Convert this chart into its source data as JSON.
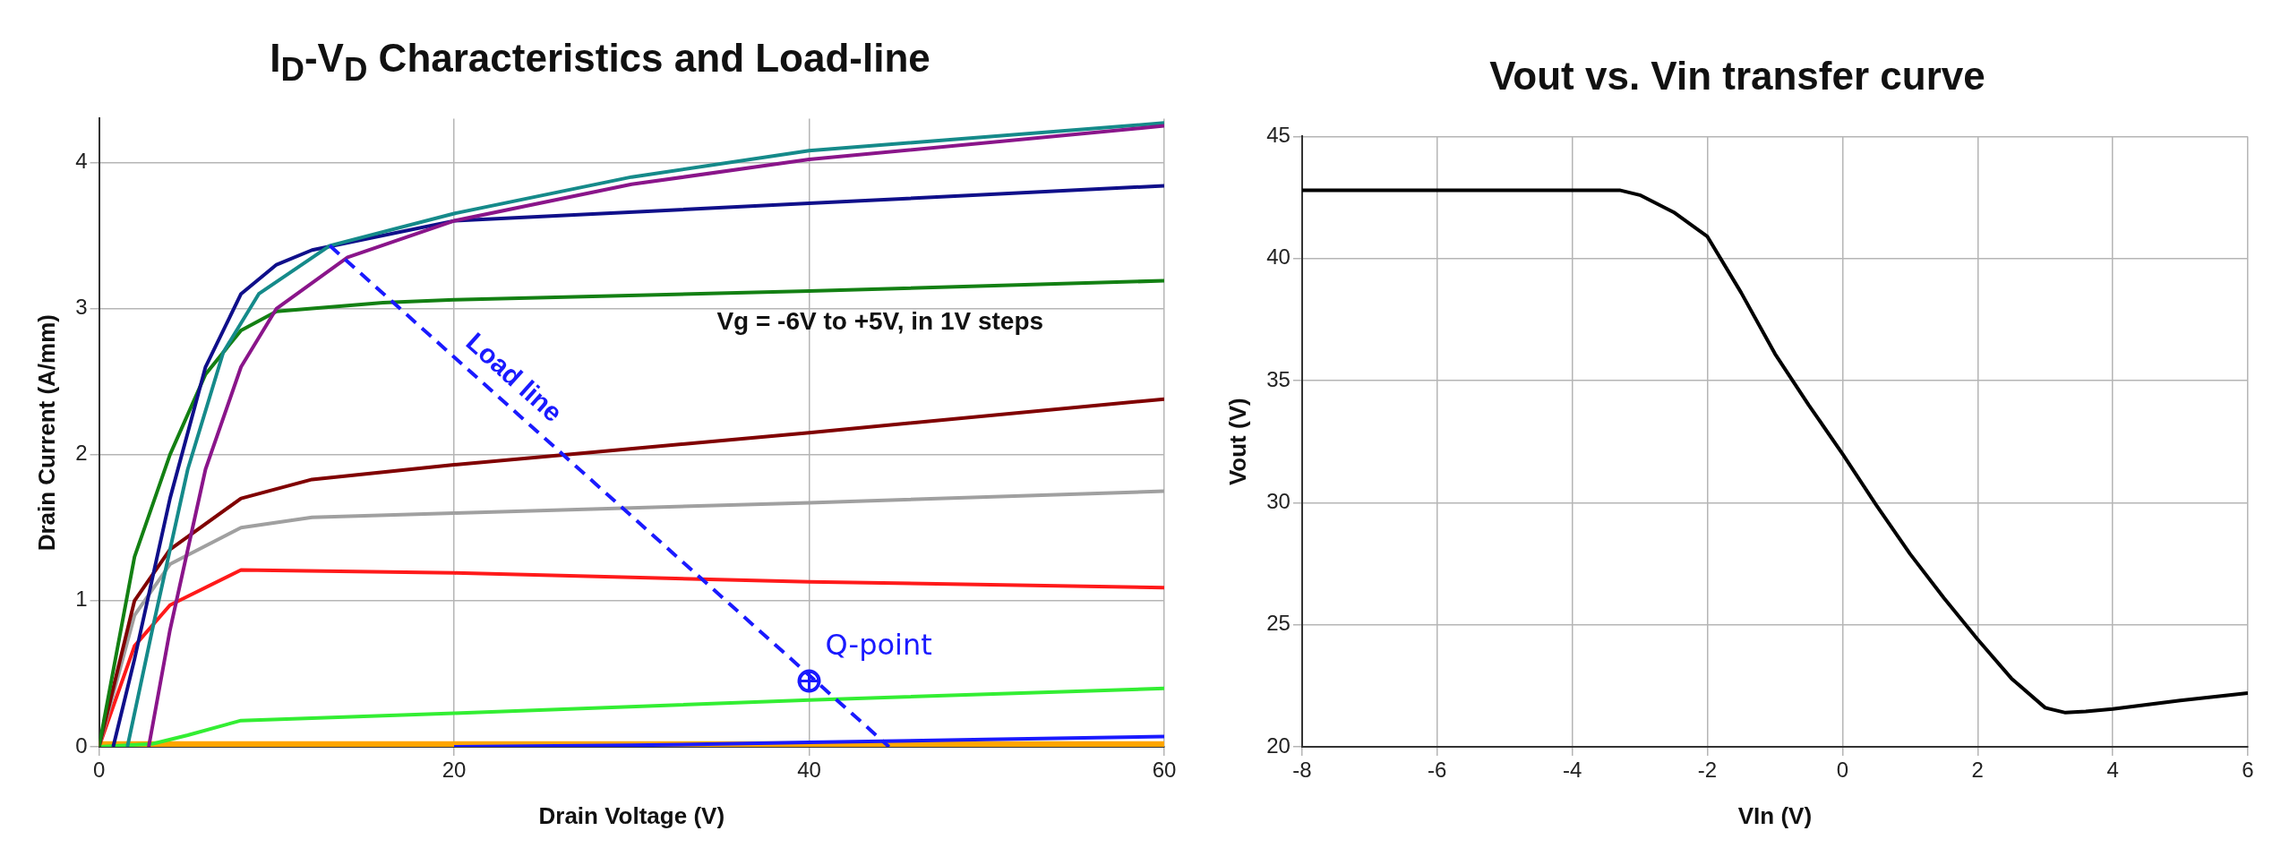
{
  "chart_data": [
    {
      "type": "line",
      "title": "I$_{D}$-V$_{D}$ Characteristics and Load-line",
      "xlabel": "Drain Voltage (V)",
      "ylabel": "Drain Current (A/mm)",
      "xlim": [
        0,
        60
      ],
      "ylim": [
        0,
        4.3
      ],
      "xticks": [
        0,
        20,
        40,
        60
      ],
      "yticks": [
        0,
        1,
        2,
        3,
        4
      ],
      "grid": true,
      "legend": false,
      "marker": "none",
      "annotations": [
        "Vg = -6V to +5V, in 1V steps"
      ],
      "series": [
        {
          "color": "#ffa500",
          "x": [
            0,
            20,
            40,
            60
          ],
          "values": [
            0.01,
            0.01,
            0.01,
            0.01
          ]
        },
        {
          "color": "#1a1aff",
          "x": [
            20,
            30,
            40,
            50,
            60
          ],
          "values": [
            0,
            0.01,
            0.03,
            0.05,
            0.07
          ]
        },
        {
          "color": "#33ee33",
          "x": [
            0,
            3,
            5,
            8,
            20,
            40,
            60
          ],
          "values": [
            0,
            0.02,
            0.08,
            0.18,
            0.23,
            0.32,
            0.4
          ]
        },
        {
          "color": "#ff1a1a",
          "x": [
            0,
            2,
            4,
            8,
            20,
            40,
            60
          ],
          "values": [
            0,
            0.69,
            0.97,
            1.21,
            1.19,
            1.13,
            1.09
          ]
        },
        {
          "color": "#a0a0a0",
          "x": [
            0,
            2,
            4,
            8,
            12,
            20,
            40,
            60
          ],
          "values": [
            0,
            0.9,
            1.25,
            1.5,
            1.57,
            1.6,
            1.67,
            1.75
          ]
        },
        {
          "color": "#800000",
          "x": [
            0,
            2,
            4,
            8,
            12,
            20,
            40,
            60
          ],
          "values": [
            0,
            1.0,
            1.35,
            1.7,
            1.83,
            1.93,
            2.15,
            2.38
          ]
        },
        {
          "color": "#138013",
          "x": [
            0,
            2,
            4,
            6,
            8,
            10,
            16,
            20,
            40,
            60
          ],
          "values": [
            0,
            1.3,
            2.0,
            2.55,
            2.85,
            2.98,
            3.04,
            3.06,
            3.12,
            3.19
          ]
        },
        {
          "color": "#0f0f8a",
          "x": [
            0.8,
            2,
            4,
            6,
            8,
            10,
            12,
            20,
            40,
            60
          ],
          "values": [
            0,
            0.6,
            1.7,
            2.6,
            3.1,
            3.3,
            3.4,
            3.6,
            3.72,
            3.84
          ]
        },
        {
          "color": "#158a8a",
          "x": [
            1.6,
            3,
            5,
            7,
            9,
            13,
            20,
            30,
            40,
            60
          ],
          "values": [
            0,
            0.8,
            1.9,
            2.7,
            3.1,
            3.43,
            3.65,
            3.9,
            4.08,
            4.27
          ]
        },
        {
          "color": "#8a158a",
          "x": [
            2.8,
            4,
            6,
            8,
            10,
            14,
            20,
            30,
            40,
            60
          ],
          "values": [
            0,
            0.8,
            1.9,
            2.6,
            3.0,
            3.35,
            3.6,
            3.85,
            4.02,
            4.25
          ]
        },
        {
          "name": "Load line",
          "color": "#1a1aff",
          "line_style": "dashed",
          "x": [
            13,
            44.5
          ],
          "values": [
            3.43,
            0
          ]
        },
        {
          "name": "Q-point",
          "type": "scatter",
          "marker": "circle",
          "color": "#1a1aff",
          "x": [
            40
          ],
          "values": [
            0.45
          ]
        }
      ]
    },
    {
      "type": "line",
      "title": "Vout vs. Vin transfer curve",
      "xlabel": "VIn (V)",
      "ylabel": "Vout (V)",
      "xlim": [
        -8,
        6
      ],
      "ylim": [
        20,
        45
      ],
      "xticks": [
        -8,
        -6,
        -4,
        -2,
        0,
        2,
        4,
        6
      ],
      "yticks": [
        20,
        25,
        30,
        35,
        40,
        45
      ],
      "grid": true,
      "legend": false,
      "marker": "none",
      "series": [
        {
          "color": "#000000",
          "x": [
            -8,
            -3.3,
            -3,
            -2.5,
            -2,
            -1.5,
            -1,
            -0.5,
            0,
            0.5,
            1,
            1.5,
            2,
            2.5,
            3,
            3.3,
            3.6,
            4,
            5,
            6
          ],
          "values": [
            42.8,
            42.8,
            42.6,
            41.9,
            40.9,
            38.6,
            36.1,
            34.0,
            32.0,
            29.9,
            27.9,
            26.1,
            24.4,
            22.8,
            21.6,
            21.4,
            21.45,
            21.55,
            21.9,
            22.2
          ]
        }
      ]
    }
  ]
}
